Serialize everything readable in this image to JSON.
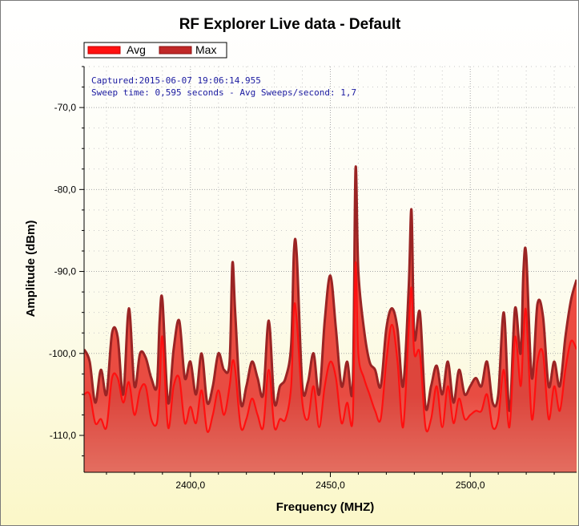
{
  "chart_data": {
    "type": "area",
    "title": "RF Explorer Live data - Default",
    "xlabel": "Frequency (MHZ)",
    "ylabel": "Amplitude (dBm)",
    "xlim": [
      2362,
      2538
    ],
    "ylim": [
      -114.5,
      -65
    ],
    "xticks": [
      2400,
      2450,
      2500
    ],
    "xtick_labels": [
      "2400,0",
      "2450,0",
      "2500,0"
    ],
    "yticks": [
      -70,
      -80,
      -90,
      -100,
      -110
    ],
    "ytick_labels": [
      "-70,0",
      "-80,0",
      "-90,0",
      "-100,0",
      "-110,0"
    ],
    "grid": true,
    "legend_position": "top-left",
    "annotations": [
      "Captured:2015-06-07 19:06:14.955",
      "Sweep time: 0,595 seconds - Avg Sweeps/second: 1,7"
    ],
    "x": [
      2362,
      2364,
      2366,
      2368,
      2370,
      2372,
      2374,
      2376,
      2378,
      2380,
      2382,
      2384,
      2386,
      2388,
      2389,
      2390,
      2392,
      2394,
      2396,
      2398,
      2400,
      2402,
      2404,
      2406,
      2408,
      2410,
      2412,
      2414,
      2415,
      2416,
      2418,
      2420,
      2422,
      2424,
      2426,
      2428,
      2430,
      2432,
      2434,
      2436,
      2437,
      2438,
      2440,
      2442,
      2444,
      2446,
      2448,
      2450,
      2452,
      2454,
      2456,
      2458,
      2459,
      2460,
      2462,
      2464,
      2466,
      2468,
      2470,
      2472,
      2474,
      2476,
      2478,
      2479,
      2480,
      2482,
      2484,
      2486,
      2488,
      2490,
      2492,
      2494,
      2496,
      2498,
      2500,
      2502,
      2504,
      2506,
      2508,
      2510,
      2512,
      2514,
      2516,
      2518,
      2519,
      2520,
      2522,
      2524,
      2526,
      2528,
      2530,
      2532,
      2534,
      2536,
      2538
    ],
    "series": [
      {
        "name": "Max",
        "color": "#d42020",
        "fill": true,
        "values": [
          -99.5,
          -101,
          -106,
          -102,
          -105,
          -97.5,
          -98,
          -105,
          -94.5,
          -104,
          -100,
          -100.5,
          -103,
          -104,
          -96,
          -93.5,
          -106,
          -99.5,
          -96,
          -103,
          -101,
          -105,
          -100,
          -106,
          -104,
          -100,
          -102,
          -101,
          -89,
          -95,
          -106,
          -104,
          -101,
          -103,
          -105,
          -96,
          -106,
          -104,
          -103,
          -99,
          -87.5,
          -88,
          -104,
          -103.5,
          -100,
          -105,
          -96,
          -90.5,
          -97,
          -104,
          -101,
          -104,
          -77.5,
          -90,
          -97,
          -101,
          -102,
          -104,
          -97,
          -94.5,
          -97,
          -104,
          -92,
          -82.5,
          -98,
          -95,
          -106.5,
          -104,
          -101.5,
          -105,
          -101,
          -106,
          -102,
          -105,
          -104,
          -103,
          -104,
          -101,
          -106,
          -105,
          -95,
          -107,
          -94.5,
          -100,
          -90,
          -88,
          -103,
          -94,
          -95.5,
          -104,
          -101,
          -104,
          -98,
          -93.5,
          -91
        ]
      },
      {
        "name": "Avg",
        "color": "#ff1010",
        "fill": false,
        "values": [
          -105,
          -105,
          -108.5,
          -108,
          -109,
          -103,
          -103,
          -106,
          -103.5,
          -107.5,
          -104.5,
          -104,
          -108,
          -108.5,
          -104,
          -98,
          -109,
          -104,
          -103,
          -108.5,
          -106.5,
          -108.5,
          -104.5,
          -109.5,
          -107.5,
          -104.5,
          -107.5,
          -104,
          -101,
          -102,
          -109,
          -108,
          -105.5,
          -107.5,
          -109,
          -102,
          -109,
          -108,
          -108,
          -104,
          -94.5,
          -96,
          -106,
          -108,
          -104,
          -109,
          -104,
          -101,
          -103,
          -108.5,
          -106,
          -108,
          -89,
          -100,
          -103,
          -105,
          -107,
          -108,
          -101,
          -96.5,
          -101,
          -109,
          -97,
          -92,
          -100,
          -100,
          -109,
          -108,
          -104,
          -109,
          -104,
          -108.5,
          -105.5,
          -108,
          -107.5,
          -107,
          -107,
          -105,
          -109,
          -108,
          -102,
          -109,
          -98,
          -104,
          -98,
          -95,
          -108,
          -101,
          -100,
          -108,
          -104,
          -107,
          -102,
          -98.5,
          -99.5
        ]
      }
    ]
  },
  "legend": [
    {
      "label": "Avg",
      "color": "#ff1010"
    },
    {
      "label": "Max",
      "color": "#c02828"
    }
  ]
}
